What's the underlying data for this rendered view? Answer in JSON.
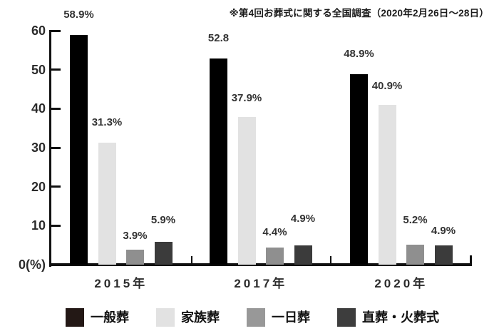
{
  "note": "※第4回お葬式に関する全国調査（2020年2月26日～28日）",
  "chart_data": {
    "type": "bar",
    "title": "",
    "xlabel": "",
    "ylabel": "%",
    "origin_label": "0(%)",
    "categories": [
      "2015年",
      "2017年",
      "2020年"
    ],
    "series": [
      {
        "name": "一般葬",
        "color": "#000000",
        "legend_color": "#231815",
        "values": [
          58.9,
          52.8,
          48.9
        ],
        "value_labels": [
          "58.9%",
          "52.8",
          "48.9%"
        ],
        "label_dy": [
          0,
          0,
          0
        ]
      },
      {
        "name": "家族葬",
        "color": "#e2e2e2",
        "legend_color": "#e2e2e2",
        "values": [
          31.3,
          37.9,
          40.9
        ],
        "value_labels": [
          "31.3%",
          "37.9%",
          "40.9%"
        ],
        "label_dy": [
          0,
          2,
          2
        ]
      },
      {
        "name": "一日葬",
        "color": "#8f8f8f",
        "legend_color": "#989898",
        "values": [
          3.9,
          4.4,
          5.2
        ],
        "value_labels": [
          "3.9%",
          "4.4%",
          "5.2%"
        ],
        "label_dy": [
          9,
          7,
          -6
        ]
      },
      {
        "name": "直葬・火葬式",
        "color": "#3b3b3b",
        "legend_color": "#3d3d3d",
        "values": [
          5.9,
          4.9,
          4.9
        ],
        "value_labels": [
          "5.9%",
          "4.9%",
          "4.9%"
        ],
        "label_dy": [
          -2,
          -9,
          8
        ]
      }
    ],
    "yticks": [
      10,
      20,
      30,
      40,
      50,
      60
    ],
    "ylim": [
      0,
      60
    ],
    "grid": false,
    "legend_position": "bottom"
  }
}
